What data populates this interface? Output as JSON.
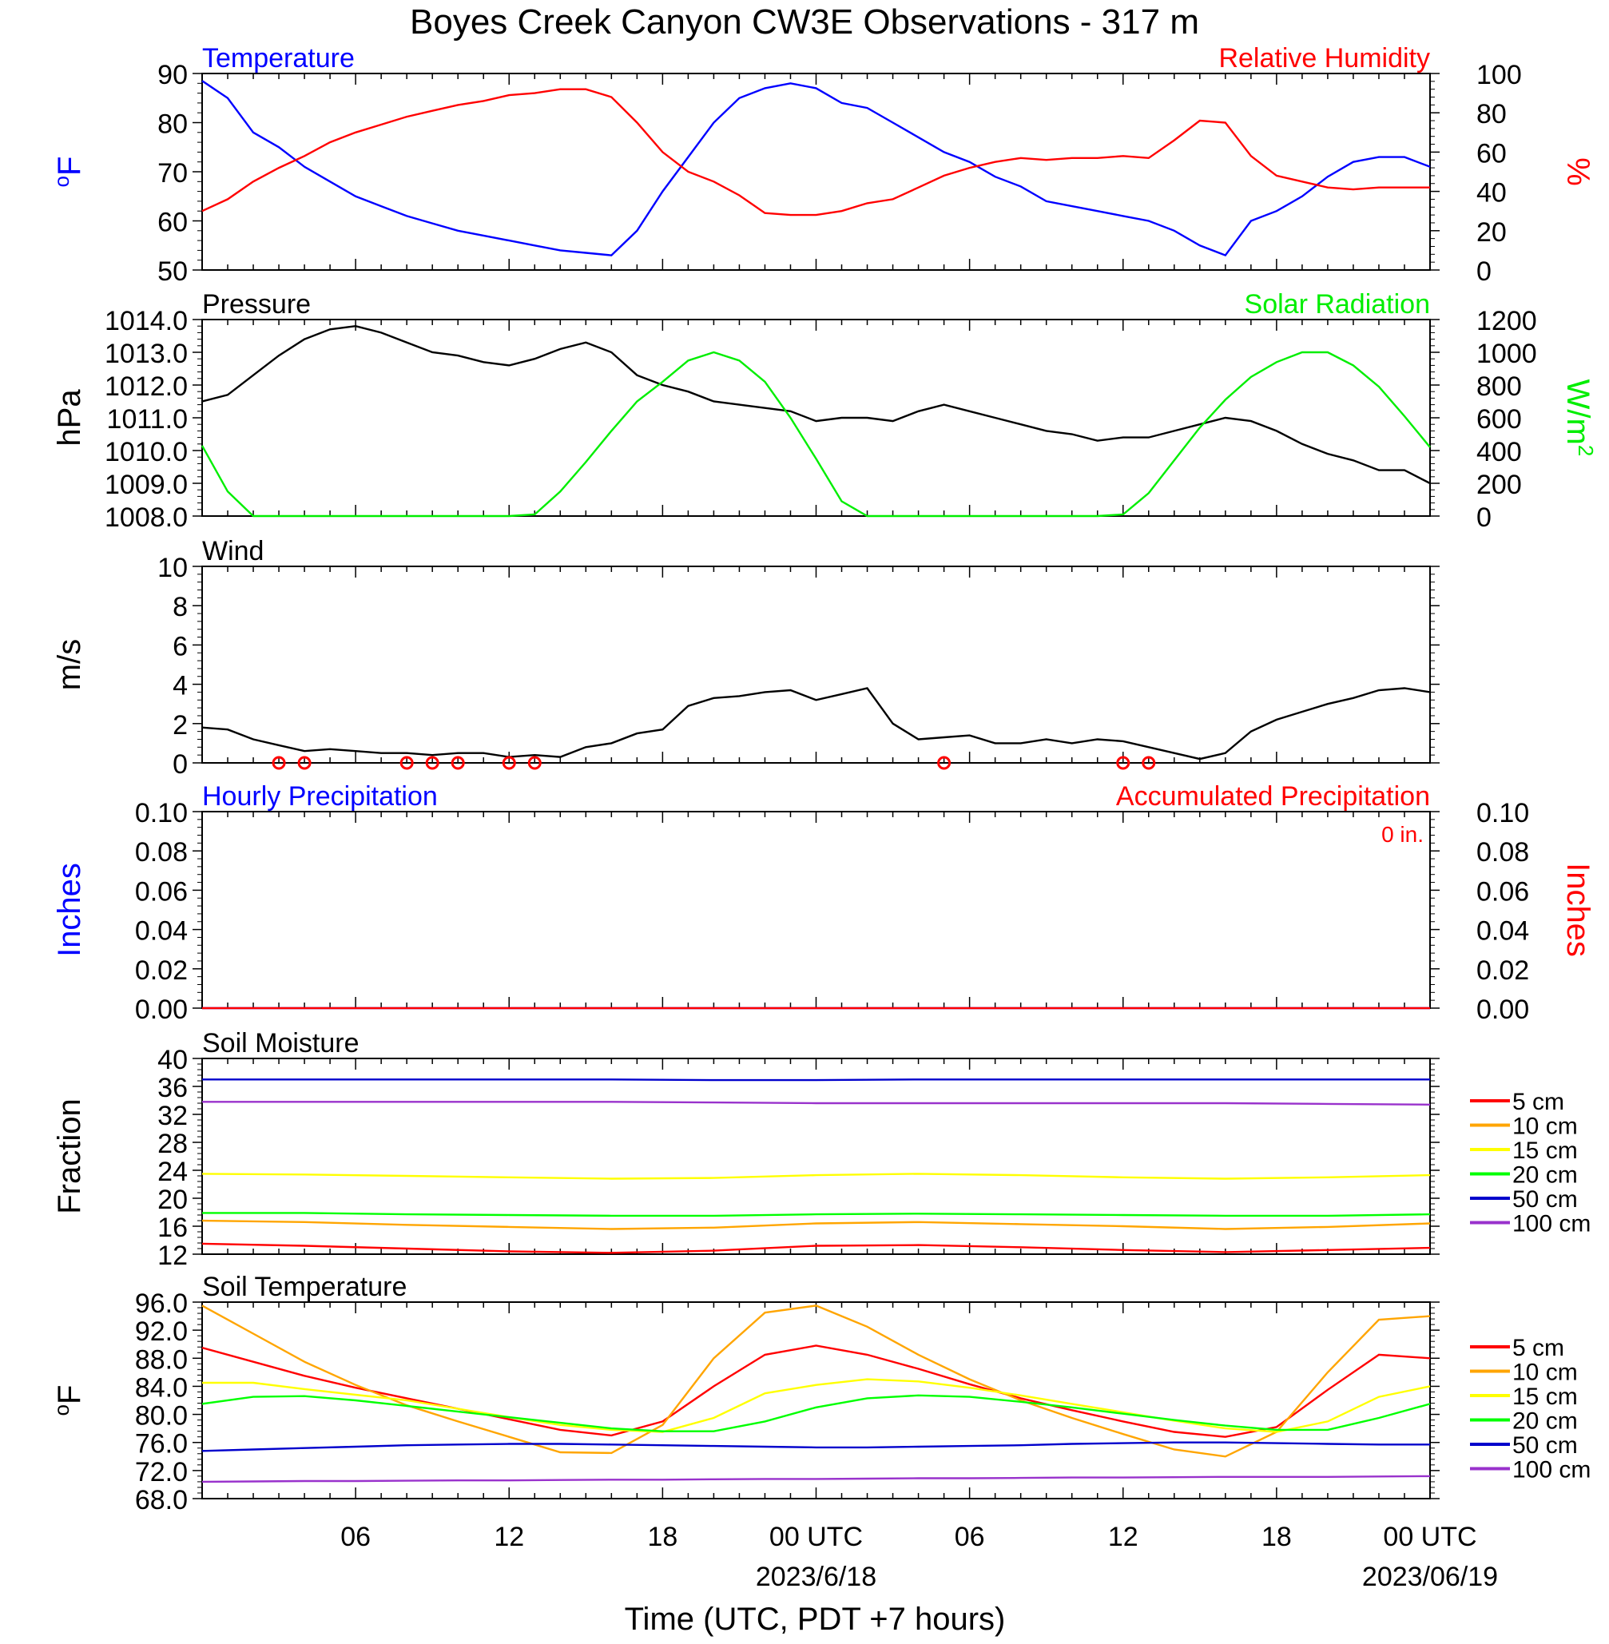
{
  "title": "Boyes Creek Canyon CW3E Observations - 317 m",
  "xlabel": "Time (UTC, PDT +7 hours)",
  "x_ticks": [
    "06",
    "12",
    "18",
    "00 UTC",
    "06",
    "12",
    "18",
    "00 UTC"
  ],
  "x_dates": [
    "2023/6/18",
    "2023/06/19"
  ],
  "chart_data": [
    {
      "type": "line",
      "panel": "temperature_humidity",
      "title_left": "Temperature",
      "title_right": "Relative Humidity",
      "ylabel_left": "oF",
      "ylabel_right": "%",
      "ylim_left": [
        50,
        90
      ],
      "ylim_right": [
        0,
        100
      ],
      "yticks_left": [
        "90",
        "80",
        "70",
        "60",
        "50"
      ],
      "yticks_right": [
        "100",
        "80",
        "60",
        "40",
        "20",
        "0"
      ],
      "x_hours": [
        0,
        1,
        2,
        3,
        4,
        5,
        6,
        7,
        8,
        9,
        10,
        11,
        12,
        13,
        14,
        15,
        16,
        17,
        18,
        19,
        20,
        21,
        22,
        23,
        24,
        25,
        26,
        27,
        28,
        29,
        30,
        31,
        32,
        33,
        34,
        35,
        36,
        37,
        38,
        39,
        40,
        41,
        42,
        43,
        44,
        45,
        46,
        47,
        48
      ],
      "series": [
        {
          "name": "Temperature",
          "color": "#0000ff",
          "axis": "left",
          "values": [
            88.5,
            85,
            78,
            75,
            71,
            68,
            65,
            63,
            61,
            59.5,
            58,
            57,
            56,
            55,
            54,
            53.5,
            53,
            58,
            66,
            73,
            80,
            85,
            87,
            88,
            87,
            84,
            83,
            80,
            77,
            74,
            72,
            69,
            67,
            64,
            63,
            62,
            61,
            60,
            58,
            55,
            53,
            60,
            62,
            65,
            69,
            72,
            73,
            73,
            71
          ]
        },
        {
          "name": "Relative Humidity",
          "color": "#ff0000",
          "axis": "right",
          "values": [
            30,
            36,
            45,
            52,
            58,
            65,
            70,
            74,
            78,
            81,
            84,
            86,
            89,
            90,
            92,
            92,
            88,
            75,
            60,
            50,
            45,
            38,
            29,
            28,
            28,
            30,
            34,
            36,
            42,
            48,
            52,
            55,
            57,
            56,
            57,
            57,
            58,
            57,
            66,
            76,
            75,
            58,
            48,
            45,
            42,
            41,
            42,
            42,
            42
          ]
        }
      ]
    },
    {
      "type": "line",
      "panel": "pressure_solar",
      "title_left": "Pressure",
      "title_right": "Solar Radiation",
      "ylabel_left": "hPa",
      "ylabel_right": "W/m2",
      "ylim_left": [
        1008.0,
        1014.0
      ],
      "ylim_right": [
        0,
        1200
      ],
      "yticks_left": [
        "1014.0",
        "1013.0",
        "1012.0",
        "1011.0",
        "1010.0",
        "1009.0",
        "1008.0"
      ],
      "yticks_right": [
        "1200",
        "1000",
        "800",
        "600",
        "400",
        "200",
        "0"
      ],
      "x_hours": [
        0,
        1,
        2,
        3,
        4,
        5,
        6,
        7,
        8,
        9,
        10,
        11,
        12,
        13,
        14,
        15,
        16,
        17,
        18,
        19,
        20,
        21,
        22,
        23,
        24,
        25,
        26,
        27,
        28,
        29,
        30,
        31,
        32,
        33,
        34,
        35,
        36,
        37,
        38,
        39,
        40,
        41,
        42,
        43,
        44,
        45,
        46,
        47,
        48
      ],
      "series": [
        {
          "name": "Pressure",
          "color": "#000000",
          "axis": "left",
          "values": [
            1011.5,
            1011.7,
            1012.3,
            1012.9,
            1013.4,
            1013.7,
            1013.8,
            1013.6,
            1013.3,
            1013.0,
            1012.9,
            1012.7,
            1012.6,
            1012.8,
            1013.1,
            1013.3,
            1013.0,
            1012.3,
            1012.0,
            1011.8,
            1011.5,
            1011.4,
            1011.3,
            1011.2,
            1010.9,
            1011.0,
            1011.0,
            1010.9,
            1011.2,
            1011.4,
            1011.2,
            1011.0,
            1010.8,
            1010.6,
            1010.5,
            1010.3,
            1010.4,
            1010.4,
            1010.6,
            1010.8,
            1011.0,
            1010.9,
            1010.6,
            1010.2,
            1009.9,
            1009.7,
            1009.4,
            1009.4,
            1009.0
          ]
        },
        {
          "name": "Solar Radiation",
          "color": "#00ee00",
          "axis": "right",
          "values": [
            430,
            150,
            0,
            0,
            0,
            0,
            0,
            0,
            0,
            0,
            0,
            0,
            0,
            10,
            150,
            330,
            520,
            700,
            820,
            950,
            1000,
            950,
            820,
            600,
            350,
            90,
            0,
            0,
            0,
            0,
            0,
            0,
            0,
            0,
            0,
            0,
            10,
            140,
            340,
            540,
            710,
            850,
            940,
            1000,
            1000,
            920,
            790,
            610,
            420
          ]
        }
      ]
    },
    {
      "type": "line",
      "panel": "wind",
      "title_left": "Wind",
      "ylabel_left": "m/s",
      "ylim_left": [
        0,
        10
      ],
      "yticks_left": [
        "10",
        "8",
        "6",
        "4",
        "2",
        "0"
      ],
      "x_hours": [
        0,
        1,
        2,
        3,
        4,
        5,
        6,
        7,
        8,
        9,
        10,
        11,
        12,
        13,
        14,
        15,
        16,
        17,
        18,
        19,
        20,
        21,
        22,
        23,
        24,
        25,
        26,
        27,
        28,
        29,
        30,
        31,
        32,
        33,
        34,
        35,
        36,
        37,
        38,
        39,
        40,
        41,
        42,
        43,
        44,
        45,
        46,
        47,
        48
      ],
      "series": [
        {
          "name": "Wind speed",
          "color": "#000000",
          "axis": "left",
          "values": [
            1.8,
            1.7,
            1.2,
            0.9,
            0.6,
            0.7,
            0.6,
            0.5,
            0.5,
            0.4,
            0.5,
            0.5,
            0.3,
            0.4,
            0.3,
            0.8,
            1.0,
            1.5,
            1.7,
            2.9,
            3.3,
            3.4,
            3.6,
            3.7,
            3.2,
            3.5,
            3.8,
            2.0,
            1.2,
            1.3,
            1.4,
            1.0,
            1.0,
            1.2,
            1.0,
            1.2,
            1.1,
            0.8,
            0.5,
            0.2,
            0.5,
            1.6,
            2.2,
            2.6,
            3.0,
            3.3,
            3.7,
            3.8,
            3.6
          ]
        }
      ],
      "calm_markers_hours": [
        3,
        4,
        8,
        9,
        10,
        12,
        13,
        29,
        36,
        37
      ]
    },
    {
      "type": "line",
      "panel": "precipitation",
      "title_left": "Hourly Precipitation",
      "title_right": "Accumulated Precipitation",
      "annotation": "0 in.",
      "ylabel_left": "Inches",
      "ylabel_right": "Inches",
      "ylim_left": [
        0,
        0.1
      ],
      "ylim_right": [
        0,
        0.1
      ],
      "yticks_left": [
        "0.10",
        "0.08",
        "0.06",
        "0.04",
        "0.02",
        "0.00"
      ],
      "yticks_right": [
        "0.10",
        "0.08",
        "0.06",
        "0.04",
        "0.02",
        "0.00"
      ],
      "series": [
        {
          "name": "Hourly Precipitation",
          "color": "#0000ff",
          "axis": "left",
          "x_hours": [
            0,
            48
          ],
          "values": [
            0,
            0
          ]
        },
        {
          "name": "Accumulated Precipitation",
          "color": "#ff0000",
          "axis": "right",
          "x_hours": [
            0,
            48
          ],
          "values": [
            0,
            0
          ]
        }
      ]
    },
    {
      "type": "line",
      "panel": "soil_moisture",
      "title_left": "Soil Moisture",
      "ylabel_left": "Fraction",
      "ylim_left": [
        12,
        40
      ],
      "yticks_left": [
        "40",
        "36",
        "32",
        "28",
        "24",
        "20",
        "16",
        "12"
      ],
      "x_hours": [
        0,
        4,
        8,
        12,
        16,
        20,
        24,
        28,
        32,
        36,
        40,
        44,
        48
      ],
      "series": [
        {
          "name": "5 cm",
          "color": "#ff0000",
          "values": [
            13.5,
            13.2,
            12.8,
            12.4,
            12.2,
            12.5,
            13.2,
            13.3,
            13.0,
            12.6,
            12.3,
            12.6,
            12.9
          ]
        },
        {
          "name": "10 cm",
          "color": "#ffa500",
          "values": [
            16.8,
            16.6,
            16.2,
            15.9,
            15.6,
            15.8,
            16.4,
            16.6,
            16.3,
            16.0,
            15.6,
            15.9,
            16.4
          ]
        },
        {
          "name": "15 cm",
          "color": "#ffff00",
          "values": [
            23.5,
            23.4,
            23.2,
            23.0,
            22.8,
            22.9,
            23.3,
            23.5,
            23.3,
            23.0,
            22.8,
            23.0,
            23.3
          ]
        },
        {
          "name": "20 cm",
          "color": "#00ff00",
          "values": [
            17.9,
            17.9,
            17.7,
            17.6,
            17.5,
            17.5,
            17.7,
            17.8,
            17.7,
            17.6,
            17.5,
            17.5,
            17.7
          ]
        },
        {
          "name": "50 cm",
          "color": "#0000cc",
          "values": [
            37.0,
            37.0,
            37.0,
            37.0,
            37.0,
            36.9,
            36.9,
            37.0,
            37.0,
            37.0,
            37.0,
            37.0,
            37.0
          ]
        },
        {
          "name": "100 cm",
          "color": "#9932cc",
          "values": [
            33.8,
            33.8,
            33.8,
            33.8,
            33.8,
            33.7,
            33.6,
            33.6,
            33.6,
            33.6,
            33.6,
            33.5,
            33.4
          ]
        }
      ]
    },
    {
      "type": "line",
      "panel": "soil_temperature",
      "title_left": "Soil Temperature",
      "ylabel_left": "oF",
      "ylim_left": [
        68.0,
        96.0
      ],
      "yticks_left": [
        "96.0",
        "92.0",
        "88.0",
        "84.0",
        "80.0",
        "76.0",
        "72.0",
        "68.0"
      ],
      "x_hours": [
        0,
        2,
        4,
        6,
        8,
        10,
        12,
        14,
        16,
        18,
        20,
        22,
        24,
        26,
        28,
        30,
        32,
        34,
        36,
        38,
        40,
        42,
        44,
        46,
        48
      ],
      "series": [
        {
          "name": "5 cm",
          "color": "#ff0000",
          "values": [
            89.5,
            87.5,
            85.5,
            83.8,
            82.3,
            80.8,
            79.3,
            77.8,
            77.0,
            79.0,
            84.0,
            88.5,
            89.8,
            88.5,
            86.5,
            84.3,
            82.3,
            80.6,
            79.0,
            77.5,
            76.8,
            78.2,
            83.5,
            88.5,
            88.0
          ]
        },
        {
          "name": "10 cm",
          "color": "#ffa500",
          "values": [
            95.5,
            91.5,
            87.5,
            84.2,
            81.3,
            79.0,
            76.8,
            74.6,
            74.5,
            78.5,
            88.0,
            94.5,
            95.5,
            92.5,
            88.5,
            85.0,
            82.0,
            79.5,
            77.2,
            75.0,
            74.0,
            77.5,
            86.0,
            93.5,
            94.0
          ]
        },
        {
          "name": "15 cm",
          "color": "#ffff00",
          "values": [
            84.5,
            84.5,
            83.6,
            82.8,
            82.0,
            80.8,
            79.6,
            78.5,
            77.8,
            77.5,
            79.5,
            83.0,
            84.2,
            85.0,
            84.7,
            83.8,
            82.7,
            81.5,
            80.3,
            79.1,
            78.0,
            77.5,
            79.0,
            82.5,
            84.0
          ]
        },
        {
          "name": "20 cm",
          "color": "#00ff00",
          "values": [
            81.5,
            82.5,
            82.6,
            82.0,
            81.2,
            80.4,
            79.6,
            78.8,
            78.0,
            77.6,
            77.6,
            79.0,
            81.0,
            82.3,
            82.7,
            82.5,
            81.8,
            81.0,
            80.1,
            79.2,
            78.4,
            77.8,
            77.8,
            79.5,
            81.5
          ]
        },
        {
          "name": "50 cm",
          "color": "#0000cc",
          "values": [
            74.8,
            75.0,
            75.2,
            75.4,
            75.6,
            75.7,
            75.8,
            75.8,
            75.7,
            75.6,
            75.5,
            75.4,
            75.3,
            75.3,
            75.4,
            75.5,
            75.6,
            75.8,
            75.9,
            76.0,
            76.0,
            75.9,
            75.8,
            75.7,
            75.7
          ]
        },
        {
          "name": "100 cm",
          "color": "#9932cc",
          "values": [
            70.4,
            70.45,
            70.5,
            70.5,
            70.55,
            70.6,
            70.6,
            70.65,
            70.7,
            70.7,
            70.75,
            70.8,
            70.8,
            70.85,
            70.9,
            70.9,
            70.95,
            71.0,
            71.0,
            71.05,
            71.1,
            71.1,
            71.1,
            71.15,
            71.2
          ]
        }
      ]
    }
  ],
  "legend": {
    "placement": "right",
    "entries": [
      {
        "label": "5 cm",
        "color": "#ff0000"
      },
      {
        "label": "10 cm",
        "color": "#ffa500"
      },
      {
        "label": "15 cm",
        "color": "#ffff00"
      },
      {
        "label": "20 cm",
        "color": "#00ff00"
      },
      {
        "label": "50 cm",
        "color": "#0000cc"
      },
      {
        "label": "100 cm",
        "color": "#9932cc"
      }
    ]
  }
}
